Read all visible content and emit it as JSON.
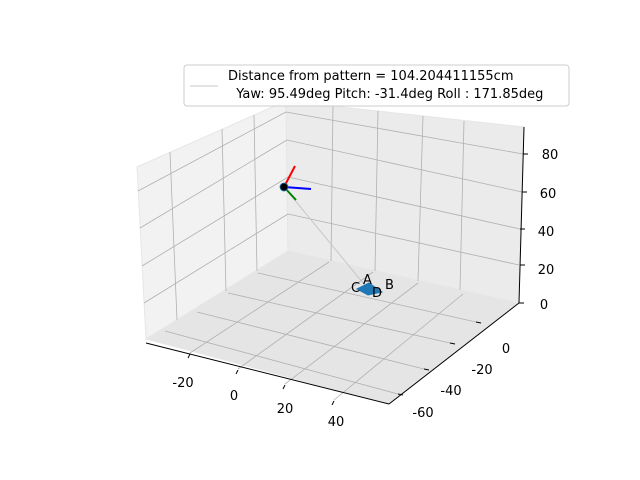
{
  "chart_data": {
    "type": "scatter",
    "projection": "3d",
    "grid": true,
    "legend": {
      "placement": "top-right",
      "line1": "Distance from pattern = 104.204411155cm",
      "line2": "  Yaw: 95.49deg Pitch: -31.4deg Roll : 171.85deg"
    },
    "axes": {
      "x": {
        "ticks": [
          "-20",
          "0",
          "20",
          "40"
        ],
        "range": [
          -30,
          50
        ]
      },
      "y": {
        "ticks": [
          "0",
          "-20",
          "-40",
          "-60"
        ],
        "range": [
          -70,
          10
        ]
      },
      "z": {
        "ticks": [
          "0",
          "20",
          "40",
          "60",
          "80"
        ],
        "range": [
          0,
          90
        ]
      }
    },
    "camera": {
      "position": [
        -10,
        0,
        60
      ],
      "axes_colors": [
        "#ff0000",
        "#0000ff",
        "#008000"
      ]
    },
    "pattern_points": [
      {
        "label": "A",
        "x": 20,
        "y": -20,
        "z": 0
      },
      {
        "label": "B",
        "x": 25,
        "y": -22,
        "z": 0
      },
      {
        "label": "C",
        "x": 18,
        "y": -22,
        "z": 0
      },
      {
        "label": "D",
        "x": 22,
        "y": -24,
        "z": 0
      }
    ],
    "colors": {
      "pattern": "#1f77b4",
      "camera_marker": "#000000",
      "line": "#c8c8c8"
    }
  }
}
